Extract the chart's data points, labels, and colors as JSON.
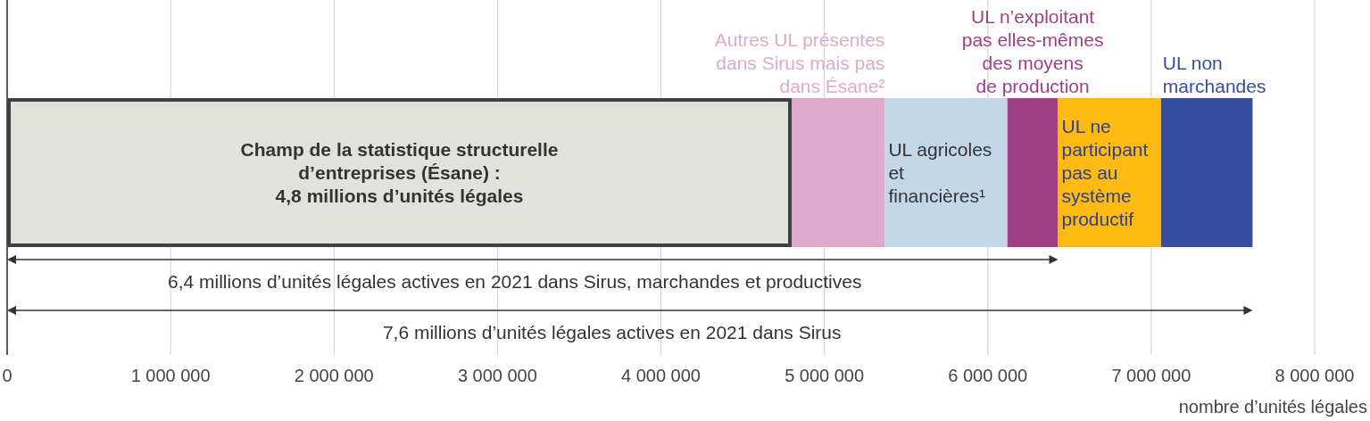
{
  "chart_data": {
    "type": "bar",
    "orientation": "horizontal",
    "stacked": true,
    "categories": [
      null
    ],
    "series": [
      {
        "name": "Champ de la statistique structurelle\nd’entreprises (Ésane) :\n4,8 millions d’unités légales",
        "color": "#e2e2dc",
        "values": [
          4800000
        ]
      },
      {
        "name": "Autres UL présentes\ndans Sirus mais pas\ndans Ésane²",
        "color": "#ddaacc",
        "values": [
          570000
        ]
      },
      {
        "name": "UL agricoles\net\nfinancières¹",
        "color": "#c3d7e8",
        "values": [
          750000
        ]
      },
      {
        "name": "UL n’exploitant\npas elles-mêmes\ndes moyens\nde production",
        "color": "#a03f85",
        "values": [
          310000
        ]
      },
      {
        "name": "UL ne\nparticipant\npas au\nsystème\nproductif",
        "color": "#fdba12",
        "values": [
          630000
        ]
      },
      {
        "name": "UL non\nmarchandes",
        "color": "#364d9f",
        "values": [
          560000
        ]
      }
    ],
    "xlim": [
      0,
      8000000
    ],
    "xticks": [
      0,
      {
        "value": 1000000,
        "label": "1 000 000"
      },
      {
        "value": 2000000,
        "label": "2 000 000"
      },
      {
        "value": 3000000,
        "label": "3 000 000"
      },
      {
        "value": 4000000,
        "label": "4 000 000"
      },
      {
        "value": 5000000,
        "label": "5 000 000"
      },
      {
        "value": 6000000,
        "label": "6 000 000"
      },
      {
        "value": 7000000,
        "label": "7 000 000"
      },
      {
        "value": 8000000,
        "label": "8 000 000"
      }
    ],
    "xlabel": "nombre d’unités légales",
    "grid": "x",
    "legend": false,
    "annotations": [
      "6,4 millions d’unités légales actives en 2021 dans Sirus, marchandes et productives",
      "7,6 millions d’unités légales actives en 2021 dans Sirus"
    ]
  }
}
